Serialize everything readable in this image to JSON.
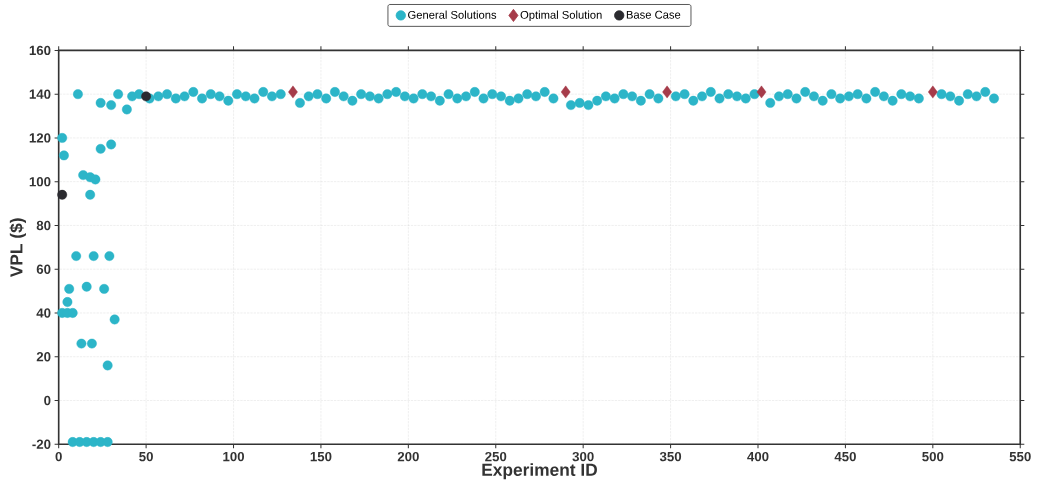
{
  "chart_data": {
    "type": "scatter",
    "xlabel": "Experiment ID",
    "ylabel": "VPL ($)",
    "xlim": [
      0,
      550
    ],
    "ylim": [
      -20,
      160
    ],
    "xticks": [
      0,
      50,
      100,
      150,
      200,
      250,
      300,
      350,
      400,
      450,
      500,
      550
    ],
    "yticks": [
      -20,
      0,
      20,
      40,
      60,
      80,
      100,
      120,
      140,
      160
    ],
    "grid": true,
    "legend": "top",
    "series": [
      {
        "name": "General Solutions",
        "color": "#2cb5c8",
        "marker": "circle",
        "x": [
          2,
          3,
          2,
          5,
          8,
          6,
          5,
          10,
          11,
          8,
          12,
          16,
          20,
          24,
          28,
          13,
          14,
          16,
          18,
          19,
          18,
          20,
          21,
          24,
          26,
          28,
          29,
          30,
          32,
          24,
          30,
          34,
          39,
          42,
          46,
          52,
          57,
          62,
          67,
          72,
          77,
          82,
          87,
          92,
          97,
          102,
          107,
          112,
          117,
          122,
          127,
          138,
          143,
          148,
          153,
          158,
          163,
          168,
          173,
          178,
          183,
          188,
          193,
          198,
          203,
          208,
          213,
          218,
          223,
          228,
          233,
          238,
          243,
          248,
          253,
          258,
          263,
          268,
          273,
          278,
          283,
          293,
          298,
          303,
          308,
          313,
          318,
          323,
          328,
          333,
          338,
          343,
          353,
          358,
          363,
          368,
          373,
          378,
          383,
          388,
          393,
          398,
          407,
          412,
          417,
          422,
          427,
          432,
          437,
          442,
          447,
          452,
          457,
          462,
          467,
          472,
          477,
          482,
          487,
          492,
          505,
          510,
          515,
          520,
          525,
          530,
          535
        ],
        "values": [
          120,
          112,
          40,
          40,
          40,
          51,
          45,
          66,
          140,
          -19,
          -19,
          -19,
          -19,
          -19,
          -19,
          26,
          103,
          52,
          94,
          26,
          102,
          66,
          101,
          115,
          51,
          16,
          66,
          117,
          37,
          136,
          135,
          140,
          133,
          139,
          140,
          138,
          139,
          140,
          138,
          139,
          141,
          138,
          140,
          139,
          137,
          140,
          139,
          138,
          141,
          139,
          140,
          136,
          139,
          140,
          138,
          141,
          139,
          137,
          140,
          139,
          138,
          140,
          141,
          139,
          138,
          140,
          139,
          137,
          140,
          138,
          139,
          141,
          138,
          140,
          139,
          137,
          138,
          140,
          139,
          141,
          138,
          135,
          136,
          135,
          137,
          139,
          138,
          140,
          139,
          137,
          140,
          138,
          139,
          140,
          137,
          139,
          141,
          138,
          140,
          139,
          138,
          140,
          136,
          139,
          140,
          138,
          141,
          139,
          137,
          140,
          138,
          139,
          140,
          138,
          141,
          139,
          137,
          140,
          139,
          138,
          140,
          139,
          137,
          140,
          139,
          141,
          138
        ]
      },
      {
        "name": "Optimal Solution",
        "color": "#a63c4a",
        "marker": "diamond",
        "x": [
          134,
          290,
          348,
          402,
          500
        ],
        "values": [
          141,
          141,
          141,
          141,
          141
        ]
      },
      {
        "name": "Base Case",
        "color": "#2b2b30",
        "marker": "circle",
        "x": [
          2,
          50
        ],
        "values": [
          94,
          139
        ]
      }
    ]
  }
}
